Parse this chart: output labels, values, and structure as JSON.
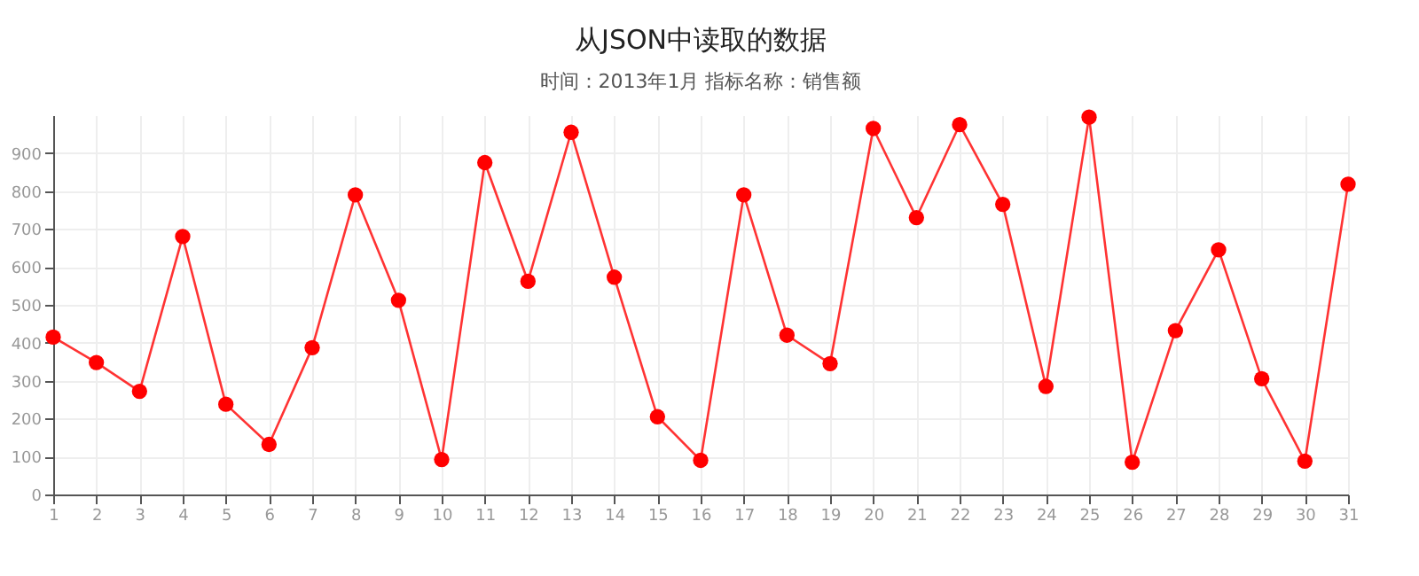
{
  "chart_data": {
    "type": "line",
    "title": "从JSON中读取的数据",
    "subtitle": "时间：2013年1月 指标名称：销售额",
    "x": [
      1,
      2,
      3,
      4,
      5,
      6,
      7,
      8,
      9,
      10,
      11,
      12,
      13,
      14,
      15,
      16,
      17,
      18,
      19,
      20,
      21,
      22,
      23,
      24,
      25,
      26,
      27,
      28,
      29,
      30,
      31
    ],
    "series": [
      {
        "color": "#ff0000",
        "values": [
          415,
          348,
          272,
          680,
          238,
          132,
          387,
          790,
          512,
          92,
          875,
          562,
          955,
          573,
          205,
          90,
          790,
          420,
          345,
          965,
          730,
          975,
          765,
          285,
          995,
          85,
          432,
          645,
          305,
          88,
          818
        ]
      }
    ],
    "xlim": [
      1,
      31
    ],
    "xticks": [
      1,
      2,
      3,
      4,
      5,
      6,
      7,
      8,
      9,
      10,
      11,
      12,
      13,
      14,
      15,
      16,
      17,
      18,
      19,
      20,
      21,
      22,
      23,
      24,
      25,
      26,
      27,
      28,
      29,
      30,
      31
    ],
    "ylim": [
      0,
      1000
    ],
    "yticks": [
      0,
      100,
      200,
      300,
      400,
      500,
      600,
      700,
      800,
      900
    ],
    "grid": true,
    "marker": "circle",
    "line_style": "solid",
    "legend": false
  }
}
